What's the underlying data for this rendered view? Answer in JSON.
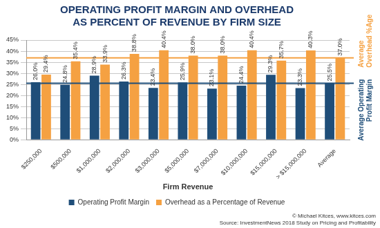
{
  "chart_data": {
    "type": "bar",
    "title": [
      "OPERATING PROFIT MARGIN AND OVERHEAD",
      "AS PERCENT OF REVENUE BY FIRM SIZE"
    ],
    "x_label": "Firm Revenue",
    "categories": [
      "$250,000",
      "$500,000",
      "$1,000,000",
      "$2,000,000",
      "$3,000,000",
      "$5,000,000",
      "$7,000,000",
      "$10,000,000",
      "$15,000,000",
      "> $15,000,000",
      "Average"
    ],
    "series": [
      {
        "name": "Operating Profit Margin",
        "color": "#1f4e79",
        "values": [
          26.0,
          24.8,
          28.9,
          26.3,
          23.4,
          25.9,
          23.1,
          24.4,
          29.3,
          23.3,
          25.5
        ],
        "value_labels": [
          "26.0%",
          "24.8%",
          "28.9%",
          "26.3%",
          "23.4%",
          "25.9%",
          "23.1%",
          "24.4%",
          "29.3%",
          "23.3%",
          "25.5%"
        ]
      },
      {
        "name": "Overhead as a Percentage of Revenue",
        "color": "#f5a142",
        "values": [
          29.4,
          35.4,
          33.9,
          38.8,
          40.4,
          38.0,
          38.0,
          40.4,
          35.7,
          40.3,
          37.0
        ],
        "value_labels": [
          "29.4%",
          "35.4%",
          "33.9%",
          "38.8%",
          "40.4%",
          "38.0%",
          "38.0%",
          "40.4%",
          "35.7%",
          "40.3%",
          "37.0%"
        ]
      }
    ],
    "ylim": [
      0,
      45
    ],
    "yticks": [
      {
        "value": 0,
        "label": "0%"
      },
      {
        "value": 5,
        "label": "5%"
      },
      {
        "value": 10,
        "label": "10%"
      },
      {
        "value": 15,
        "label": "15%"
      },
      {
        "value": 20,
        "label": "20%"
      },
      {
        "value": 25,
        "label": "25%"
      },
      {
        "value": 30,
        "label": "30%"
      },
      {
        "value": 35,
        "label": "35%"
      },
      {
        "value": 40,
        "label": "40%"
      },
      {
        "value": 45,
        "label": "45%"
      }
    ],
    "grid": true,
    "legend": "bottom",
    "data_labels": true,
    "reference_lines": [
      {
        "value": 37.0,
        "label": "Average Overhead %Age",
        "color": "#f5a142"
      },
      {
        "value": 25.5,
        "label": "Average Operating Profit Margin",
        "color": "#1f4e79"
      }
    ],
    "credits": [
      "© Michael Kitces, www.kitces.com",
      "Source: InvestmentNews 2018 Study on Pricing and Profitability"
    ]
  }
}
